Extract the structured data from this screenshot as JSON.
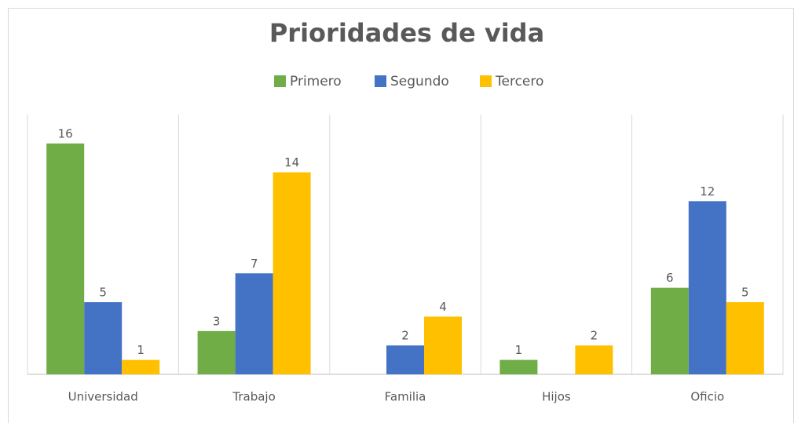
{
  "chart_data": {
    "type": "bar",
    "title": "Prioridades de vida",
    "categories": [
      "Universidad",
      "Trabajo",
      "Familia",
      "Hijos",
      "Oficio"
    ],
    "series": [
      {
        "name": "Primero",
        "color": "#70ad47",
        "values": [
          16,
          3,
          null,
          1,
          6
        ]
      },
      {
        "name": "Segundo",
        "color": "#4472c4",
        "values": [
          5,
          7,
          2,
          null,
          12
        ]
      },
      {
        "name": "Tercero",
        "color": "#ffc000",
        "values": [
          1,
          14,
          4,
          2,
          5
        ]
      }
    ],
    "ylim": [
      0,
      18
    ],
    "legend": "top"
  }
}
